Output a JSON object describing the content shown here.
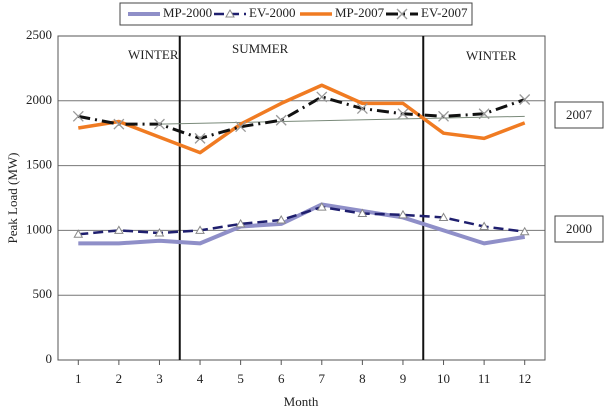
{
  "chart_data": {
    "type": "line",
    "x_label": "Month",
    "y_label": "Peak Load (MW)",
    "x": [
      1,
      2,
      3,
      4,
      5,
      6,
      7,
      8,
      9,
      10,
      11,
      12
    ],
    "xlim": [
      0.5,
      12.5
    ],
    "xticks": [
      1,
      2,
      3,
      4,
      5,
      6,
      7,
      8,
      9,
      10,
      11,
      12
    ],
    "ylim": [
      0,
      2500
    ],
    "yticks": [
      0,
      500,
      1000,
      1500,
      2000,
      2500
    ],
    "grid": true,
    "series": [
      {
        "name": "MP-2000",
        "color": "#8f8fc8",
        "width": 4,
        "dash": "",
        "marker": "none",
        "values": [
          900,
          900,
          920,
          900,
          1030,
          1050,
          1200,
          1150,
          1100,
          1000,
          900,
          950
        ]
      },
      {
        "name": "EV-2000",
        "color": "#1f1f6e",
        "width": 2.5,
        "dash": "10 5",
        "marker": "triangle",
        "values": [
          970,
          1000,
          980,
          1000,
          1050,
          1080,
          1180,
          1130,
          1120,
          1100,
          1030,
          990
        ]
      },
      {
        "name": "MP-2007",
        "color": "#f07b22",
        "width": 3.5,
        "dash": "",
        "marker": "none",
        "values": [
          1790,
          1840,
          1720,
          1600,
          1820,
          1980,
          2120,
          1980,
          1980,
          1750,
          1710,
          1830
        ]
      },
      {
        "name": "EV-2007",
        "color": "#111111",
        "width": 3,
        "dash": "12 5 2 5",
        "marker": "cross",
        "values": [
          1880,
          1820,
          1820,
          1710,
          1800,
          1850,
          2030,
          1940,
          1900,
          1880,
          1900,
          2010
        ]
      }
    ],
    "trend": {
      "x": [
        3,
        12
      ],
      "values": [
        1820,
        1880
      ],
      "color": "#7a8a7a"
    },
    "dividers": [
      3.5,
      9.5
    ],
    "region_labels": [
      "WINTER",
      "SUMMER",
      "WINTER"
    ],
    "year_labels": [
      "2007",
      "2000"
    ]
  }
}
